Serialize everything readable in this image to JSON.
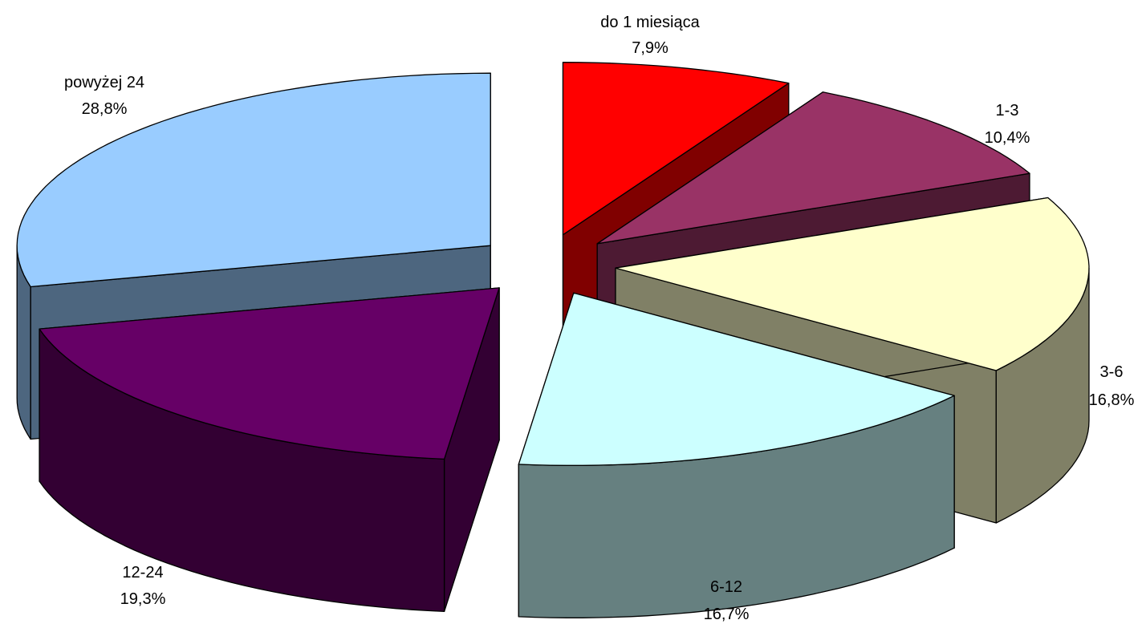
{
  "chart_data": {
    "type": "pie",
    "style": "3d-exploded",
    "slices": [
      {
        "name": "do 1 miesiąca",
        "value_label": "7,9%",
        "value": 7.9,
        "top_color": "#ff0000",
        "side_color": "#800000"
      },
      {
        "name": "1-3",
        "value_label": "10,4%",
        "value": 10.4,
        "top_color": "#993366",
        "side_color": "#4d1a33"
      },
      {
        "name": "3-6",
        "value_label": "16,8%",
        "value": 16.8,
        "top_color": "#ffffcc",
        "side_color": "#808066"
      },
      {
        "name": "6-12",
        "value_label": "16,7%",
        "value": 16.7,
        "top_color": "#ccffff",
        "side_color": "#668080"
      },
      {
        "name": "12-24",
        "value_label": "19,3%",
        "value": 19.3,
        "top_color": "#660066",
        "side_color": "#330033"
      },
      {
        "name": "powyżej 24",
        "value_label": "28,8%",
        "value": 28.8,
        "top_color": "#99ccff",
        "side_color": "#4d667f"
      }
    ]
  }
}
